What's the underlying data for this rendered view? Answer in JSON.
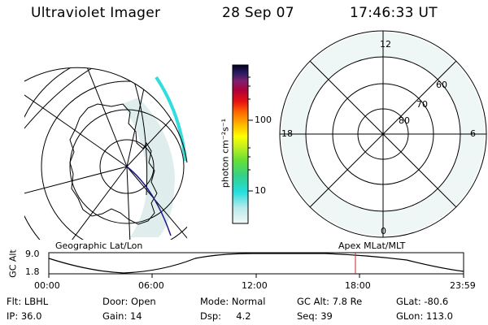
{
  "header": {
    "instrument": "Ultraviolet Imager",
    "date": "28 Sep 07",
    "time": "17:46:33 UT"
  },
  "left_panel": {
    "caption": "Geographic Lat/Lon"
  },
  "right_panel": {
    "caption": "Apex MLat/MLT",
    "mlt_labels": {
      "top": "12",
      "left": "18",
      "right": "6",
      "bottom": "0"
    },
    "lat_labels": [
      "60",
      "70",
      "80"
    ]
  },
  "colorbar": {
    "unit_label": "photon cm⁻²s⁻¹",
    "ticks": [
      "100",
      "10"
    ]
  },
  "timeline": {
    "ylabel": "GC Alt",
    "y_ticks": [
      "9.0",
      "1.8"
    ],
    "x_ticks": [
      "00:00",
      "06:00",
      "12:00",
      "18:00",
      "23:59"
    ],
    "marker_time": "17:46"
  },
  "status": {
    "row1": {
      "flt": "Flt: LBHL",
      "door": "Door: Open",
      "mode": "Mode: Normal",
      "gcalt": "GC Alt: 7.8 Re",
      "glat": "GLat: -80.6"
    },
    "row2": {
      "ip": "IP: 36.0",
      "gain": "Gain: 14",
      "dsp": "Dsp:     4.2",
      "seq": "Seq: 39",
      "glon": "GLon: 113.0"
    }
  },
  "colors": {
    "marker": "#cc2222",
    "track": "#1a1a8c",
    "aurora_edge": "#33dddd",
    "aurora_faint": "#d9ecec"
  }
}
